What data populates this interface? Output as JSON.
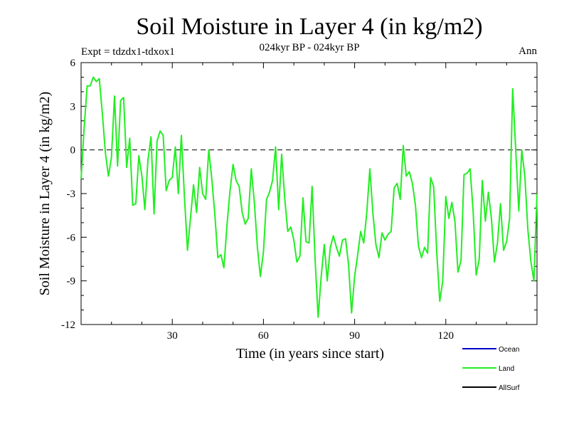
{
  "chart_data": {
    "type": "line",
    "title": "Soil Moisture in Layer 4 (in kg/m2)",
    "subtitle": "024kyr BP - 024kyr BP",
    "left_label": "Expt = tdzdx1-tdxox1",
    "right_label": "Ann",
    "xlabel": "Time (in years since start)",
    "ylabel": "Soil Moisture in Layer 4 (in kg/m2)",
    "xlim": [
      0,
      150
    ],
    "ylim": [
      -12,
      6
    ],
    "xticks": [
      30,
      60,
      90,
      120
    ],
    "yticks": [
      6,
      3,
      0,
      -3,
      -6,
      -9,
      -12
    ],
    "zero_line": true,
    "legend": [
      {
        "name": "Ocean",
        "color": "#0000cc"
      },
      {
        "name": "Land",
        "color": "#22ee22"
      },
      {
        "name": "AllSurf",
        "color": "#000000"
      }
    ],
    "series": [
      {
        "name": "Land",
        "color": "#22ee22",
        "x_start": 0,
        "x_step": 1,
        "values": [
          -2.0,
          1.5,
          4.4,
          4.4,
          5.0,
          4.7,
          4.9,
          2.5,
          -0.2,
          -1.8,
          -0.5,
          3.7,
          -1.1,
          3.4,
          3.6,
          -1.2,
          0.8,
          -3.8,
          -3.7,
          -0.4,
          -1.8,
          -4.1,
          -0.7,
          0.9,
          -4.4,
          0.6,
          1.3,
          1.0,
          -2.8,
          -2.1,
          -1.9,
          0.2,
          -3.0,
          1.0,
          -3.2,
          -6.9,
          -4.7,
          -2.4,
          -4.3,
          -1.2,
          -3.0,
          -3.4,
          0.0,
          -2.0,
          -4.4,
          -7.4,
          -7.2,
          -8.1,
          -5.2,
          -2.8,
          -1.0,
          -2.1,
          -2.5,
          -4.3,
          -5.1,
          -4.7,
          -1.3,
          -3.6,
          -6.7,
          -8.7,
          -7.0,
          -3.4,
          -2.9,
          -2.1,
          0.2,
          -4.1,
          -0.3,
          -3.3,
          -5.6,
          -5.3,
          -6.2,
          -7.7,
          -7.3,
          -3.3,
          -6.3,
          -6.4,
          -2.5,
          -7.5,
          -11.5,
          -8.7,
          -6.5,
          -9.0,
          -6.7,
          -5.9,
          -6.7,
          -7.3,
          -6.2,
          -6.1,
          -7.9,
          -11.2,
          -8.7,
          -7.2,
          -5.6,
          -6.4,
          -4.3,
          -1.3,
          -4.3,
          -6.5,
          -7.4,
          -5.7,
          -6.2,
          -5.8,
          -5.6,
          -2.6,
          -2.3,
          -3.4,
          0.3,
          -1.8,
          -1.5,
          -2.3,
          -3.8,
          -6.6,
          -7.4,
          -6.7,
          -7.1,
          -1.9,
          -2.5,
          -7.0,
          -10.4,
          -9.0,
          -3.2,
          -4.7,
          -3.6,
          -4.9,
          -8.4,
          -7.6,
          -1.7,
          -1.6,
          -1.3,
          -4.3,
          -8.6,
          -7.5,
          -2.1,
          -4.9,
          -2.9,
          -4.7,
          -7.7,
          -6.4,
          -3.7,
          -6.9,
          -6.3,
          -4.7,
          4.2,
          0.0,
          -4.2,
          0.0,
          -1.8,
          -5.5,
          -7.7,
          -9.0,
          -3.0
        ]
      }
    ]
  }
}
